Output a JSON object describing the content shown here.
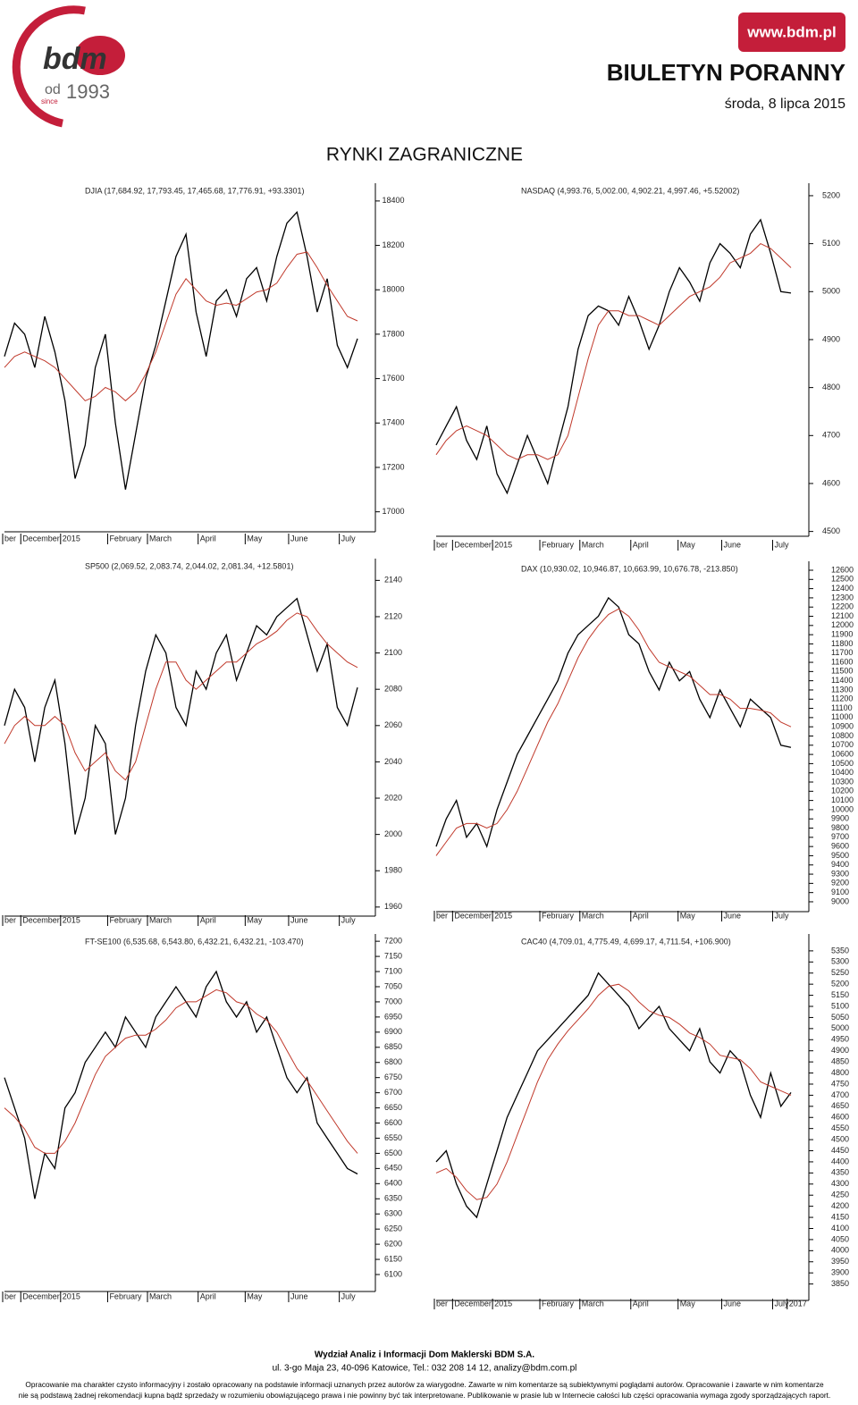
{
  "header": {
    "logo": "bdm",
    "od": "od",
    "since": "since",
    "year": "1993",
    "url": "www.bdm.pl",
    "title": "BIULETYN PORANNY",
    "date": "środa, 8 lipca 2015"
  },
  "section_title": "RYNKI ZAGRANICZNE",
  "chart_data": [
    {
      "type": "line",
      "title": "DJIA (17,684.92, 17,793.45, 17,465.68, 17,776.91, +93.3301)",
      "x_labels": [
        "ber",
        "December",
        "2015",
        "February",
        "March",
        "April",
        "May",
        "June",
        "July"
      ],
      "ylim": [
        16910,
        18480
      ],
      "yticks": [
        17000,
        17200,
        17400,
        17600,
        17800,
        18000,
        18200,
        18400
      ],
      "series": [
        {
          "color": "#000000",
          "values": [
            17700,
            17850,
            17800,
            17650,
            17880,
            17720,
            17500,
            17150,
            17300,
            17650,
            17800,
            17400,
            17100,
            17350,
            17600,
            17750,
            17950,
            18150,
            18250,
            17900,
            17700,
            17950,
            18000,
            17880,
            18050,
            18100,
            17950,
            18150,
            18300,
            18350,
            18150,
            17900,
            18050,
            17750,
            17650,
            17780
          ]
        },
        {
          "color": "#c0392b",
          "values": [
            17650,
            17700,
            17720,
            17700,
            17680,
            17650,
            17600,
            17550,
            17500,
            17520,
            17560,
            17540,
            17500,
            17540,
            17620,
            17720,
            17850,
            17980,
            18050,
            18000,
            17950,
            17930,
            17940,
            17930,
            17960,
            17990,
            18000,
            18030,
            18100,
            18160,
            18170,
            18100,
            18020,
            17950,
            17880,
            17860
          ]
        }
      ]
    },
    {
      "type": "line",
      "title": "NASDAQ (4,993.76, 5,002.00, 4,902.21, 4,997.46, +5.52002)",
      "x_labels": [
        "ber",
        "December",
        "2015",
        "February",
        "March",
        "April",
        "May",
        "June",
        "July"
      ],
      "ylim": [
        4490,
        5226
      ],
      "yticks": [
        4500,
        4600,
        4700,
        4800,
        4900,
        5000,
        5100,
        5200
      ],
      "series": [
        {
          "color": "#000000",
          "values": [
            4680,
            4720,
            4760,
            4690,
            4650,
            4720,
            4620,
            4580,
            4640,
            4700,
            4650,
            4600,
            4680,
            4760,
            4880,
            4950,
            4970,
            4960,
            4930,
            4990,
            4940,
            4880,
            4930,
            5000,
            5050,
            5020,
            4980,
            5060,
            5100,
            5080,
            5050,
            5120,
            5150,
            5080,
            5000,
            4997
          ]
        },
        {
          "color": "#c0392b",
          "values": [
            4660,
            4690,
            4710,
            4720,
            4710,
            4700,
            4680,
            4660,
            4650,
            4660,
            4660,
            4650,
            4660,
            4700,
            4780,
            4860,
            4930,
            4960,
            4960,
            4950,
            4950,
            4940,
            4930,
            4950,
            4970,
            4990,
            5000,
            5010,
            5030,
            5060,
            5070,
            5080,
            5100,
            5090,
            5070,
            5050
          ]
        }
      ]
    },
    {
      "type": "line",
      "title": "SP500 (2,069.52, 2,083.74, 2,044.02, 2,081.34, +12.5801)",
      "x_labels": [
        "ber",
        "December",
        "2015",
        "February",
        "March",
        "April",
        "May",
        "June",
        "July"
      ],
      "ylim": [
        1955,
        2152
      ],
      "yticks": [
        1960,
        1980,
        2000,
        2020,
        2040,
        2060,
        2080,
        2100,
        2120,
        2140
      ],
      "series": [
        {
          "color": "#000000",
          "values": [
            2060,
            2080,
            2070,
            2040,
            2070,
            2085,
            2050,
            2000,
            2020,
            2060,
            2050,
            2000,
            2020,
            2060,
            2090,
            2110,
            2100,
            2070,
            2060,
            2090,
            2080,
            2100,
            2110,
            2085,
            2100,
            2115,
            2110,
            2120,
            2125,
            2130,
            2110,
            2090,
            2105,
            2070,
            2060,
            2081
          ]
        },
        {
          "color": "#c0392b",
          "values": [
            2050,
            2060,
            2065,
            2060,
            2060,
            2065,
            2060,
            2045,
            2035,
            2040,
            2045,
            2035,
            2030,
            2040,
            2060,
            2080,
            2095,
            2095,
            2085,
            2080,
            2085,
            2090,
            2095,
            2095,
            2100,
            2105,
            2108,
            2112,
            2118,
            2122,
            2120,
            2112,
            2105,
            2100,
            2095,
            2092
          ]
        }
      ]
    },
    {
      "type": "line",
      "title": "DAX (10,930.02, 10,946.87, 10,663.99, 10,676.78, -213.850)",
      "x_labels": [
        "ber",
        "December",
        "2015",
        "February",
        "March",
        "April",
        "May",
        "June",
        "July"
      ],
      "ylim": [
        8893,
        12697
      ],
      "yticks": [
        9000,
        9100,
        9200,
        9300,
        9400,
        9500,
        9600,
        9700,
        9800,
        9900,
        10000,
        10100,
        10200,
        10300,
        10400,
        10500,
        10600,
        10700,
        10800,
        10900,
        11000,
        11100,
        11200,
        11300,
        11400,
        11500,
        11600,
        11700,
        11800,
        11900,
        12000,
        12100,
        12200,
        12300,
        12400,
        12500,
        12600
      ],
      "series": [
        {
          "color": "#000000",
          "values": [
            9600,
            9900,
            10100,
            9700,
            9850,
            9600,
            10000,
            10300,
            10600,
            10800,
            11000,
            11200,
            11400,
            11700,
            11900,
            12000,
            12100,
            12300,
            12200,
            11900,
            11800,
            11500,
            11300,
            11600,
            11400,
            11500,
            11200,
            11000,
            11300,
            11100,
            10900,
            11200,
            11100,
            11000,
            10700,
            10677
          ]
        },
        {
          "color": "#c0392b",
          "values": [
            9500,
            9650,
            9800,
            9850,
            9850,
            9800,
            9850,
            10000,
            10200,
            10450,
            10700,
            10950,
            11150,
            11400,
            11650,
            11850,
            12000,
            12120,
            12180,
            12100,
            11950,
            11750,
            11600,
            11550,
            11500,
            11450,
            11350,
            11250,
            11250,
            11200,
            11100,
            11100,
            11080,
            11050,
            10950,
            10900
          ]
        }
      ]
    },
    {
      "type": "line",
      "title": "FT-SE100 (6,535.68, 6,543.80, 6,432.21, 6,432.21, -103.470)",
      "x_labels": [
        "ber",
        "December",
        "2015",
        "February",
        "March",
        "April",
        "May",
        "June",
        "July"
      ],
      "ylim": [
        6044,
        7224
      ],
      "yticks": [
        6100,
        6150,
        6200,
        6250,
        6300,
        6350,
        6400,
        6450,
        6500,
        6550,
        6600,
        6650,
        6700,
        6750,
        6800,
        6850,
        6900,
        6950,
        7000,
        7050,
        7100,
        7150,
        7200
      ],
      "series": [
        {
          "color": "#000000",
          "values": [
            6750,
            6650,
            6550,
            6350,
            6500,
            6450,
            6650,
            6700,
            6800,
            6850,
            6900,
            6850,
            6950,
            6900,
            6850,
            6950,
            7000,
            7050,
            7000,
            6950,
            7050,
            7100,
            7000,
            6950,
            7000,
            6900,
            6950,
            6850,
            6750,
            6700,
            6750,
            6600,
            6550,
            6500,
            6450,
            6432
          ]
        },
        {
          "color": "#c0392b",
          "values": [
            6650,
            6620,
            6580,
            6520,
            6500,
            6500,
            6540,
            6600,
            6680,
            6760,
            6820,
            6850,
            6880,
            6890,
            6890,
            6910,
            6940,
            6980,
            7000,
            7000,
            7020,
            7040,
            7030,
            7000,
            6990,
            6960,
            6940,
            6900,
            6840,
            6780,
            6740,
            6690,
            6640,
            6590,
            6540,
            6500
          ]
        }
      ]
    },
    {
      "type": "line",
      "title": "CAC40 (4,709.01, 4,775.49, 4,699.17, 4,711.54, +106.900)",
      "x_labels": [
        "ber",
        "December",
        "2015",
        "February",
        "March",
        "April",
        "May",
        "June",
        "July",
        "2017"
      ],
      "ylim": [
        3776,
        5426
      ],
      "yticks": [
        3850,
        3900,
        3950,
        4000,
        4050,
        4100,
        4150,
        4200,
        4250,
        4300,
        4350,
        4400,
        4450,
        4500,
        4550,
        4600,
        4650,
        4700,
        4750,
        4800,
        4850,
        4900,
        4950,
        5000,
        5050,
        5100,
        5150,
        5200,
        5250,
        5300,
        5350
      ],
      "series": [
        {
          "color": "#000000",
          "values": [
            4400,
            4450,
            4300,
            4200,
            4150,
            4300,
            4450,
            4600,
            4700,
            4800,
            4900,
            4950,
            5000,
            5050,
            5100,
            5150,
            5250,
            5200,
            5150,
            5100,
            5000,
            5050,
            5100,
            5000,
            4950,
            4900,
            5000,
            4850,
            4800,
            4900,
            4850,
            4700,
            4600,
            4800,
            4650,
            4712
          ]
        },
        {
          "color": "#c0392b",
          "values": [
            4350,
            4370,
            4330,
            4270,
            4230,
            4240,
            4300,
            4400,
            4520,
            4640,
            4760,
            4860,
            4930,
            4990,
            5040,
            5090,
            5150,
            5190,
            5200,
            5170,
            5120,
            5080,
            5060,
            5050,
            5020,
            4980,
            4960,
            4930,
            4880,
            4870,
            4860,
            4820,
            4760,
            4740,
            4720,
            4700
          ]
        }
      ]
    }
  ],
  "footer": {
    "line1": "Wydział Analiz i Informacji Dom Maklerski BDM S.A.",
    "line2": "ul. 3-go Maja 23, 40-096 Katowice, Tel.: 032 208 14 12, analizy@bdm.com.pl",
    "disclaimer1": "Opracowanie ma charakter czysto informacyjny i zostało opracowany na podstawie informacji uznanych przez autorów za wiarygodne. Zawarte w nim komentarze są subiektywnymi poglądami autorów. Opracowanie i zawarte w nim komentarze",
    "disclaimer2": "nie są podstawą żadnej rekomendacji kupna bądź sprzedaży w rozumieniu obowiązującego prawa i nie powinny być tak interpretowane. Publikowanie w prasie lub w Internecie całości lub części opracowania wymaga zgody sporządzających raport."
  }
}
